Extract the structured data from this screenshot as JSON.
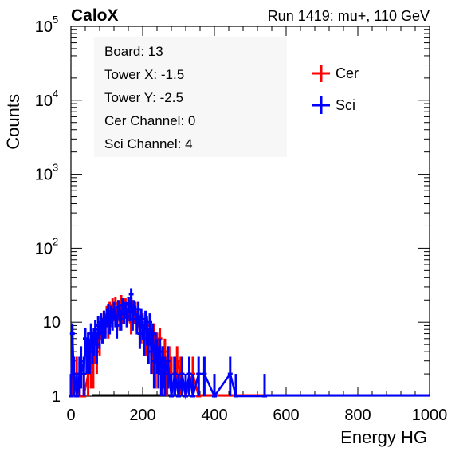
{
  "header": {
    "left": "CaloX",
    "right": "Run 1419: mu+, 110 GeV"
  },
  "info": {
    "board": "Board: 13",
    "tower_x": "Tower X: -1.5",
    "tower_y": "Tower Y: -2.5",
    "cer_channel": "Cer Channel: 0",
    "sci_channel": "Sci Channel: 4"
  },
  "chart_data": {
    "type": "line",
    "xlabel": "Energy HG",
    "ylabel": "Counts",
    "xlim": [
      0,
      1000
    ],
    "ylim": [
      1,
      100000
    ],
    "yscale": "log",
    "x_ticks": [
      "0",
      "200",
      "400",
      "600",
      "800",
      "1000"
    ],
    "y_ticks": [
      {
        "base": "1",
        "exp": ""
      },
      {
        "base": "10",
        "exp": ""
      },
      {
        "base": "10",
        "exp": "2"
      },
      {
        "base": "10",
        "exp": "3"
      },
      {
        "base": "10",
        "exp": "4"
      },
      {
        "base": "10",
        "exp": "5"
      }
    ],
    "legend_position": "top-right",
    "grid": false,
    "series": [
      {
        "name": "Cer",
        "color": "#ff0000",
        "x": [
          4,
          16,
          24,
          36,
          48,
          56,
          62,
          68,
          72,
          76,
          80,
          84,
          88,
          92,
          96,
          100,
          104,
          108,
          112,
          116,
          120,
          124,
          128,
          132,
          136,
          140,
          144,
          148,
          152,
          156,
          160,
          164,
          168,
          172,
          176,
          180,
          184,
          188,
          192,
          196,
          200,
          204,
          208,
          212,
          216,
          220,
          224,
          228,
          232,
          236,
          240,
          244,
          248,
          252,
          256,
          262,
          268,
          274,
          280,
          288,
          296,
          306,
          320,
          340,
          356
        ],
        "y": [
          1,
          2,
          1,
          1,
          2,
          3,
          3,
          5,
          4,
          7,
          6,
          9,
          8,
          11,
          10,
          13,
          9,
          15,
          12,
          17,
          14,
          18,
          12,
          16,
          11,
          19,
          13,
          15,
          17,
          12,
          14,
          18,
          10,
          16,
          13,
          15,
          11,
          12,
          9,
          8,
          10,
          7,
          6,
          9,
          5,
          8,
          6,
          4,
          7,
          3,
          5,
          4,
          6,
          2,
          3,
          4,
          2,
          3,
          2,
          2,
          3,
          2,
          1,
          2,
          1
        ]
      },
      {
        "name": "Sci",
        "color": "#0000ff",
        "x": [
          0,
          4,
          8,
          16,
          24,
          28,
          36,
          40,
          44,
          48,
          52,
          56,
          60,
          64,
          68,
          72,
          76,
          80,
          84,
          88,
          92,
          96,
          100,
          104,
          108,
          112,
          116,
          120,
          124,
          128,
          132,
          136,
          140,
          144,
          148,
          152,
          156,
          160,
          164,
          168,
          172,
          176,
          180,
          184,
          188,
          192,
          196,
          200,
          204,
          208,
          212,
          216,
          220,
          224,
          228,
          232,
          236,
          240,
          244,
          248,
          252,
          256,
          262,
          270,
          280,
          290,
          300,
          310,
          320,
          330,
          340,
          356,
          372,
          400,
          444,
          460,
          540
        ],
        "y": [
          1,
          7,
          2,
          1,
          2,
          3,
          2,
          6,
          4,
          5,
          4,
          7,
          5,
          6,
          8,
          5,
          9,
          7,
          10,
          8,
          11,
          9,
          12,
          14,
          10,
          13,
          11,
          15,
          12,
          9,
          16,
          14,
          11,
          17,
          13,
          15,
          12,
          18,
          14,
          24,
          11,
          16,
          13,
          10,
          15,
          7,
          12,
          9,
          6,
          11,
          8,
          5,
          10,
          4,
          7,
          3,
          5,
          4,
          3,
          4,
          2,
          3,
          2,
          3,
          1,
          2,
          1,
          2,
          1,
          2,
          1,
          2,
          2,
          1,
          2,
          1,
          1
        ]
      }
    ]
  }
}
